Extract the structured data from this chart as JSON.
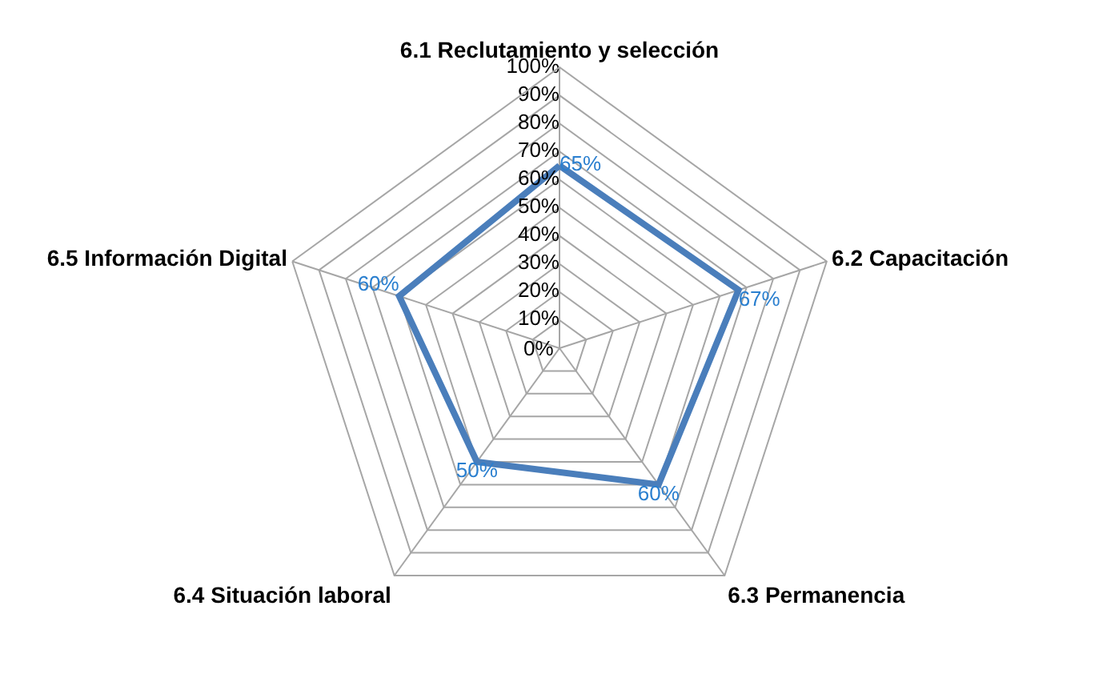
{
  "chart_data": {
    "type": "radar",
    "categories": [
      "6.1 Reclutamiento y selección",
      "6.2 Capacitación",
      "6.3 Permanencia",
      "6.4 Situación laboral",
      "6.5 Información Digital"
    ],
    "series": [
      {
        "color": "#4a7ebb",
        "values": [
          65,
          67,
          60,
          50,
          60
        ],
        "value_labels": [
          "65%",
          "67%",
          "60%",
          "50%",
          "60%"
        ]
      }
    ],
    "ylim": [
      0,
      100
    ],
    "yticks": [
      {
        "value": 0,
        "label": "0%"
      },
      {
        "value": 10,
        "label": "10%"
      },
      {
        "value": 20,
        "label": "20%"
      },
      {
        "value": 30,
        "label": "30%"
      },
      {
        "value": 40,
        "label": "40%"
      },
      {
        "value": 50,
        "label": "50%"
      },
      {
        "value": 60,
        "label": "60%"
      },
      {
        "value": 70,
        "label": "70%"
      },
      {
        "value": 80,
        "label": "80%"
      },
      {
        "value": 90,
        "label": "90%"
      },
      {
        "value": 100,
        "label": "100%"
      }
    ],
    "grid": true,
    "marker": "none",
    "line_style": "solid"
  }
}
